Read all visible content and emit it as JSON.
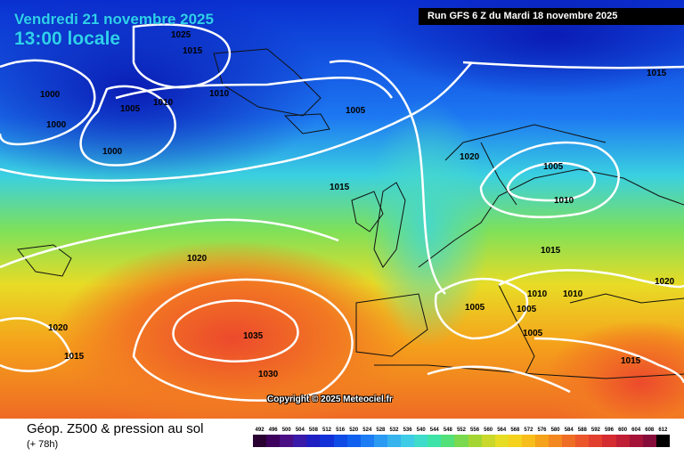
{
  "header": {
    "date": "Vendredi 21 novembre 2025",
    "local_time": "13:00 locale",
    "run_info": "Run GFS 6 Z du Mardi 18 novembre 2025"
  },
  "map": {
    "copyright": "Copyright © 2025 Meteociel.fr",
    "isobar_labels": [
      "1025",
      "1015",
      "1000",
      "1000",
      "1005",
      "1010",
      "1010",
      "1000",
      "1005",
      "1015",
      "1020",
      "1005",
      "1010",
      "1015",
      "1020",
      "1005",
      "1005",
      "1010",
      "1010",
      "1005",
      "1015",
      "1020",
      "1015",
      "1035",
      "1030",
      "1015",
      "1020"
    ],
    "color_scale": {
      "low": "#1a0066",
      "mid": "#2fd6c8",
      "high": "#f26a2e"
    }
  },
  "legend": {
    "title": "Géop. Z500 & pression au sol",
    "forecast_hour": "(+ 78h)",
    "scale_values": [
      "492",
      "496",
      "500",
      "504",
      "508",
      "512",
      "516",
      "520",
      "524",
      "528",
      "532",
      "536",
      "540",
      "544",
      "548",
      "552",
      "556",
      "560",
      "564",
      "568",
      "572",
      "576",
      "580",
      "584",
      "588",
      "592",
      "596",
      "600",
      "604",
      "608",
      "612"
    ],
    "scale_colors": [
      "#2a0033",
      "#3d005c",
      "#4a0f85",
      "#3a1aa8",
      "#1f1ec2",
      "#1230d8",
      "#0d4ae6",
      "#1060ef",
      "#1c7cf4",
      "#2b9af3",
      "#37b4ee",
      "#3fcce6",
      "#40dccb",
      "#3ee3a8",
      "#52e07a",
      "#7ad94f",
      "#a3d633",
      "#c9d82a",
      "#e6dd24",
      "#f5d21d",
      "#f7bd1a",
      "#f5a31a",
      "#f2881f",
      "#ef6e25",
      "#eb562b",
      "#e23f2e",
      "#d42c30",
      "#c01e34",
      "#a51438",
      "#860d3a",
      "#000000"
    ]
  }
}
